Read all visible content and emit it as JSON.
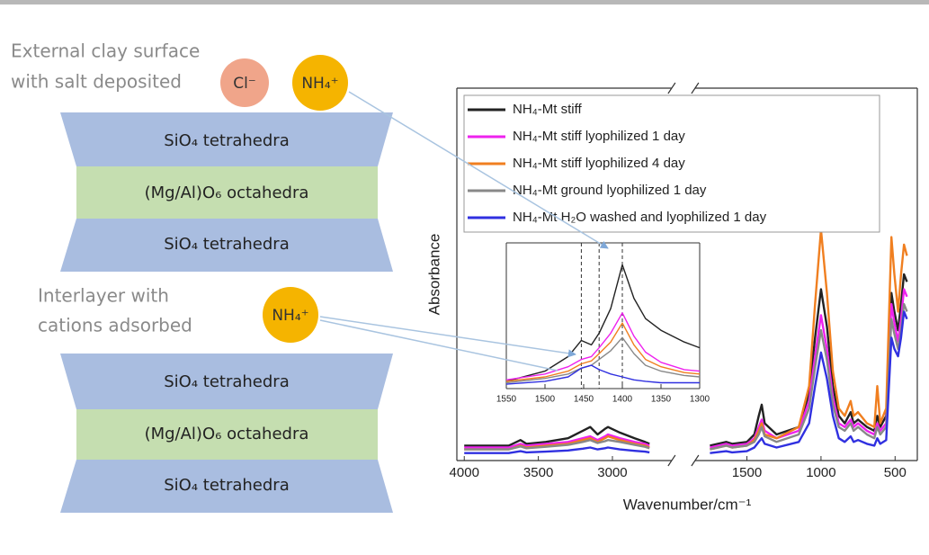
{
  "diagram": {
    "surface_label": [
      "External clay surface",
      "with salt deposited"
    ],
    "surface_ions": [
      "Cl⁻",
      "NH₄⁺"
    ],
    "interlayer_label": [
      "Interlayer with",
      "cations adsorbed"
    ],
    "interlayer_ion": "NH₄⁺",
    "stacks": [
      {
        "layers": [
          "SiO₄ tetrahedra",
          "(Mg/Al)O₆ octahedra",
          "SiO₄ tetrahedra"
        ]
      },
      {
        "layers": [
          "SiO₄ tetrahedra",
          "(Mg/Al)O₆ octahedra",
          "SiO₄ tetrahedra"
        ]
      }
    ]
  },
  "chart_data": [
    {
      "type": "line",
      "y_label": "Absorbance",
      "x_label": "Wavenumber/cm⁻¹",
      "x": [
        4000,
        3700,
        3620,
        3580,
        3450,
        3300,
        3200,
        3150,
        3100,
        3050,
        3030,
        2950,
        2850,
        2780,
        2750,
        1750,
        1640,
        1600,
        1500,
        1450,
        1420,
        1400,
        1380,
        1300,
        1150,
        1080,
        1040,
        1000,
        960,
        920,
        880,
        840,
        800,
        780,
        750,
        690,
        640,
        620,
        600,
        560,
        525,
        505,
        480,
        460,
        440,
        420
      ],
      "xlim": [
        4050,
        350
      ],
      "xbreak": [
        2600,
        1850
      ],
      "xticks": [
        4000,
        3500,
        3000,
        1500,
        1000,
        500
      ],
      "ylim": [
        0,
        1
      ],
      "legend": "upper left",
      "series": [
        {
          "name": "NH₄-Mt stiff",
          "color": "#222222",
          "values": [
            0.04,
            0.04,
            0.055,
            0.045,
            0.05,
            0.06,
            0.08,
            0.09,
            0.07,
            0.085,
            0.09,
            0.075,
            0.06,
            0.05,
            0.045,
            0.04,
            0.05,
            0.045,
            0.05,
            0.07,
            0.12,
            0.15,
            0.1,
            0.07,
            0.09,
            0.18,
            0.33,
            0.46,
            0.36,
            0.2,
            0.12,
            0.1,
            0.13,
            0.1,
            0.11,
            0.09,
            0.08,
            0.12,
            0.09,
            0.12,
            0.45,
            0.4,
            0.35,
            0.42,
            0.5,
            0.48
          ]
        },
        {
          "name": "NH₄-Mt stiff lyophilized 1 day",
          "color": "#ee22ee",
          "values": [
            0.035,
            0.035,
            0.045,
            0.04,
            0.045,
            0.05,
            0.06,
            0.065,
            0.055,
            0.065,
            0.07,
            0.06,
            0.05,
            0.045,
            0.04,
            0.035,
            0.045,
            0.04,
            0.045,
            0.06,
            0.09,
            0.11,
            0.08,
            0.06,
            0.08,
            0.16,
            0.28,
            0.39,
            0.3,
            0.17,
            0.1,
            0.09,
            0.11,
            0.09,
            0.1,
            0.08,
            0.07,
            0.1,
            0.08,
            0.1,
            0.42,
            0.37,
            0.32,
            0.38,
            0.46,
            0.44
          ]
        },
        {
          "name": "NH₄-Mt stiff lyophilized 4 day",
          "color": "#f07f20",
          "values": [
            0.03,
            0.03,
            0.04,
            0.035,
            0.04,
            0.045,
            0.055,
            0.06,
            0.05,
            0.06,
            0.065,
            0.055,
            0.045,
            0.04,
            0.035,
            0.03,
            0.04,
            0.035,
            0.04,
            0.055,
            0.08,
            0.1,
            0.07,
            0.06,
            0.09,
            0.2,
            0.42,
            0.62,
            0.45,
            0.24,
            0.14,
            0.12,
            0.16,
            0.12,
            0.13,
            0.1,
            0.09,
            0.2,
            0.1,
            0.14,
            0.6,
            0.5,
            0.4,
            0.5,
            0.58,
            0.55
          ]
        },
        {
          "name": "NH₄-Mt ground lyophilized 1 day",
          "color": "#888888",
          "values": [
            0.03,
            0.03,
            0.038,
            0.033,
            0.037,
            0.042,
            0.05,
            0.055,
            0.047,
            0.052,
            0.055,
            0.05,
            0.042,
            0.037,
            0.033,
            0.03,
            0.04,
            0.035,
            0.04,
            0.05,
            0.07,
            0.09,
            0.065,
            0.05,
            0.07,
            0.14,
            0.25,
            0.35,
            0.27,
            0.15,
            0.09,
            0.08,
            0.1,
            0.08,
            0.09,
            0.07,
            0.06,
            0.09,
            0.07,
            0.09,
            0.38,
            0.34,
            0.3,
            0.35,
            0.42,
            0.4
          ]
        },
        {
          "name": "NH₄-Mt H₂O washed and lyophilized 1 day",
          "color": "#3030e0",
          "values": [
            0.02,
            0.02,
            0.025,
            0.022,
            0.024,
            0.027,
            0.032,
            0.035,
            0.03,
            0.033,
            0.035,
            0.03,
            0.026,
            0.024,
            0.022,
            0.02,
            0.025,
            0.022,
            0.025,
            0.035,
            0.05,
            0.06,
            0.045,
            0.035,
            0.05,
            0.1,
            0.2,
            0.29,
            0.22,
            0.12,
            0.06,
            0.05,
            0.065,
            0.05,
            0.055,
            0.045,
            0.04,
            0.06,
            0.045,
            0.055,
            0.33,
            0.3,
            0.28,
            0.33,
            0.4,
            0.38
          ]
        }
      ]
    },
    {
      "type": "line",
      "x": [
        1550,
        1500,
        1470,
        1453,
        1440,
        1430,
        1415,
        1400,
        1385,
        1370,
        1350,
        1320,
        1300
      ],
      "xlim": [
        1550,
        1300
      ],
      "xticks": [
        1550,
        1500,
        1450,
        1400,
        1350,
        1300
      ],
      "ylim": [
        0,
        1
      ],
      "vlines": [
        1453,
        1430,
        1400
      ],
      "series": [
        {
          "color": "#222222",
          "values": [
            0.05,
            0.12,
            0.22,
            0.33,
            0.3,
            0.38,
            0.55,
            0.85,
            0.62,
            0.48,
            0.4,
            0.32,
            0.28
          ]
        },
        {
          "color": "#ee22ee",
          "values": [
            0.06,
            0.1,
            0.15,
            0.2,
            0.22,
            0.28,
            0.38,
            0.52,
            0.36,
            0.25,
            0.18,
            0.13,
            0.12
          ]
        },
        {
          "color": "#f07f20",
          "values": [
            0.05,
            0.08,
            0.12,
            0.17,
            0.19,
            0.24,
            0.32,
            0.45,
            0.3,
            0.2,
            0.15,
            0.11,
            0.1
          ]
        },
        {
          "color": "#888888",
          "values": [
            0.04,
            0.07,
            0.1,
            0.14,
            0.16,
            0.2,
            0.26,
            0.35,
            0.24,
            0.16,
            0.12,
            0.09,
            0.08
          ]
        },
        {
          "color": "#3030e0",
          "values": [
            0.03,
            0.05,
            0.08,
            0.14,
            0.16,
            0.13,
            0.1,
            0.08,
            0.06,
            0.05,
            0.04,
            0.04,
            0.04
          ]
        }
      ]
    }
  ]
}
